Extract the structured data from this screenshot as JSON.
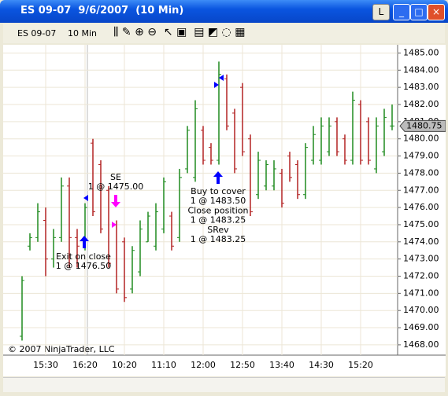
{
  "window": {
    "title": "ES 09-07  9/6/2007  (10 Min)",
    "l_button": "L"
  },
  "toolbar": {
    "instrument": "ES 09-07",
    "interval": "10 Min"
  },
  "chart_data": {
    "type": "ohlc",
    "categories": [
      null,
      null,
      null,
      "15:30",
      null,
      null,
      null,
      null,
      "16:20",
      null,
      null,
      null,
      null,
      "10:20",
      null,
      null,
      null,
      null,
      "11:10",
      null,
      null,
      null,
      null,
      "12:00",
      null,
      null,
      null,
      null,
      "12:50",
      null,
      null,
      null,
      null,
      "13:40",
      null,
      null,
      null,
      null,
      "14:30",
      null,
      null,
      null,
      null,
      "15:20",
      null,
      null,
      null,
      null
    ],
    "open": [
      1468.5,
      1473.75,
      1474.25,
      1475.25,
      1473.0,
      1474.25,
      1477.25,
      1474.25,
      1473.75,
      1479.75,
      1478.5,
      1477.0,
      1475.0,
      1474.0,
      1471.25,
      1472.25,
      1474.0,
      1473.75,
      1474.75,
      1475.5,
      1474.25,
      1478.25,
      1477.75,
      1480.5,
      1479.5,
      1478.75,
      1483.5,
      1481.5,
      1483.0,
      1480.0,
      1476.75,
      1477.25,
      1477.25,
      1478.0,
      1479.0,
      1478.5,
      1476.75,
      1478.75,
      1478.75,
      1479.25,
      1481.0,
      1480.0,
      1478.75,
      1482.0,
      1481.0,
      1478.25,
      1479.25,
      1480.75
    ],
    "high": [
      1472.0,
      1474.5,
      1476.25,
      1476.0,
      1474.75,
      1477.75,
      1477.75,
      1474.75,
      1476.25,
      1480.0,
      1478.75,
      1477.25,
      1475.25,
      1474.25,
      1473.75,
      1475.25,
      1475.75,
      1476.25,
      1477.75,
      1475.75,
      1478.25,
      1480.75,
      1482.25,
      1480.75,
      1479.75,
      1484.5,
      1483.75,
      1481.75,
      1483.25,
      1480.25,
      1479.25,
      1478.75,
      1478.75,
      1478.25,
      1479.25,
      1478.75,
      1479.75,
      1480.75,
      1481.25,
      1481.25,
      1481.25,
      1480.25,
      1482.75,
      1482.25,
      1481.25,
      1481.25,
      1481.75,
      1482.0
    ],
    "low": [
      1468.25,
      1473.5,
      1474.0,
      1472.0,
      1472.5,
      1474.0,
      1472.5,
      1472.5,
      1473.5,
      1475.5,
      1474.5,
      1472.5,
      1471.0,
      1470.5,
      1471.0,
      1472.0,
      1474.0,
      1473.5,
      1474.5,
      1473.5,
      1474.0,
      1478.0,
      1477.5,
      1478.5,
      1478.5,
      1478.5,
      1480.5,
      1478.0,
      1479.0,
      1475.5,
      1476.5,
      1477.0,
      1477.0,
      1476.0,
      1477.5,
      1476.5,
      1476.5,
      1478.5,
      1478.5,
      1479.0,
      1479.0,
      1478.5,
      1478.5,
      1478.5,
      1478.5,
      1478.0,
      1479.0,
      1480.5
    ],
    "close": [
      1471.75,
      1474.25,
      1475.75,
      1473.0,
      1474.25,
      1477.25,
      1474.25,
      1473.75,
      1476.0,
      1475.75,
      1474.75,
      1472.75,
      1471.25,
      1470.75,
      1473.5,
      1474.75,
      1475.5,
      1475.75,
      1477.5,
      1473.75,
      1477.75,
      1480.5,
      1481.75,
      1478.75,
      1478.75,
      1483.75,
      1480.75,
      1478.25,
      1479.25,
      1475.75,
      1478.75,
      1478.5,
      1478.25,
      1476.25,
      1477.75,
      1476.75,
      1479.5,
      1480.25,
      1480.75,
      1480.75,
      1479.25,
      1478.75,
      1482.25,
      1478.75,
      1478.75,
      1480.75,
      1481.25,
      1480.75
    ],
    "up_color": "#1f8a1f",
    "down_color": "#b22222",
    "ylim": [
      1467.4,
      1485.25
    ],
    "yticks": [
      {
        "value": 1468,
        "label": "1468.00"
      },
      {
        "value": 1469,
        "label": "1469.00"
      },
      {
        "value": 1470,
        "label": "1470.00"
      },
      {
        "value": 1471,
        "label": "1471.00"
      },
      {
        "value": 1472,
        "label": "1472.00"
      },
      {
        "value": 1473,
        "label": "1473.00"
      },
      {
        "value": 1474,
        "label": "1474.00"
      },
      {
        "value": 1475,
        "label": "1475.00"
      },
      {
        "value": 1476,
        "label": "1476.00"
      },
      {
        "value": 1477,
        "label": "1477.00"
      },
      {
        "value": 1478,
        "label": "1478.00"
      },
      {
        "value": 1479,
        "label": "1479.00"
      },
      {
        "value": 1480,
        "label": "1480.00"
      },
      {
        "value": 1481,
        "label": "1481.00"
      },
      {
        "value": 1482,
        "label": "1482.00"
      },
      {
        "value": 1483,
        "label": "1483.00"
      },
      {
        "value": 1484,
        "label": "1484.00"
      },
      {
        "value": 1485,
        "label": "1485.00"
      }
    ],
    "grid": true,
    "annotations": [
      [
        "SE",
        "1 @ 1475.00"
      ],
      [
        "Buy to cover",
        "1 @ 1483.50",
        "Close position",
        "1 @ 1483.25",
        "SRev",
        "1 @ 1483.25"
      ],
      [
        "Exit on close",
        "1 @ 1476.50"
      ]
    ],
    "copyright": "© 2007 NinjaTrader, LLC"
  }
}
